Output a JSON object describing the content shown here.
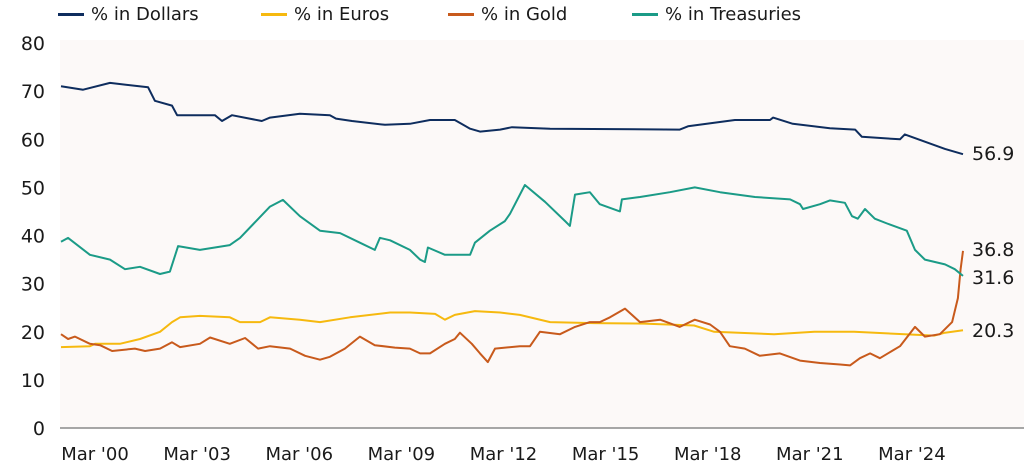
{
  "chart_data": {
    "type": "line",
    "title": "",
    "xlabel": "",
    "ylabel": "",
    "ylim": [
      0,
      80
    ],
    "yticks": [
      0,
      10,
      20,
      30,
      40,
      50,
      60,
      70,
      80
    ],
    "xlim": [
      1999.25,
      2025.75
    ],
    "xticks": [
      {
        "x": 2000.25,
        "label": "Mar '00"
      },
      {
        "x": 2003.25,
        "label": "Mar '03"
      },
      {
        "x": 2006.25,
        "label": "Mar '06"
      },
      {
        "x": 2009.25,
        "label": "Mar '09"
      },
      {
        "x": 2012.25,
        "label": "Mar '12"
      },
      {
        "x": 2015.25,
        "label": "Mar '15"
      },
      {
        "x": 2018.25,
        "label": "Mar '18"
      },
      {
        "x": 2021.25,
        "label": "Mar '21"
      },
      {
        "x": 2024.25,
        "label": "Mar '24"
      }
    ],
    "grid": false,
    "legend_placement": "top",
    "background": "#fcf9f8",
    "series": [
      {
        "name": "% in Dollars",
        "color": "#0e2d5e",
        "end_label": "56.9",
        "points": [
          [
            1999.25,
            71
          ],
          [
            1999.9,
            70.3
          ],
          [
            2000.69,
            71.7
          ],
          [
            2001.81,
            70.8
          ],
          [
            2002.01,
            68
          ],
          [
            2002.51,
            67
          ],
          [
            2002.66,
            65
          ],
          [
            2003.77,
            65
          ],
          [
            2003.98,
            63.8
          ],
          [
            2004.27,
            65
          ],
          [
            2005.15,
            63.8
          ],
          [
            2005.39,
            64.5
          ],
          [
            2006.27,
            65.3
          ],
          [
            2007.15,
            65
          ],
          [
            2007.33,
            64.3
          ],
          [
            2007.8,
            63.8
          ],
          [
            2008.77,
            63
          ],
          [
            2009.5,
            63.2
          ],
          [
            2010.09,
            64
          ],
          [
            2010.82,
            64
          ],
          [
            2011.27,
            62.2
          ],
          [
            2011.56,
            61.6
          ],
          [
            2012.15,
            62
          ],
          [
            2012.5,
            62.5
          ],
          [
            2013.62,
            62.2
          ],
          [
            2017.43,
            62
          ],
          [
            2017.67,
            62.7
          ],
          [
            2019.05,
            64
          ],
          [
            2020.08,
            64
          ],
          [
            2020.17,
            64.5
          ],
          [
            2020.75,
            63.2
          ],
          [
            2021.84,
            62.3
          ],
          [
            2022.58,
            62
          ],
          [
            2022.78,
            60.5
          ],
          [
            2023.9,
            60
          ],
          [
            2024.04,
            61
          ],
          [
            2024.63,
            59.5
          ],
          [
            2025.22,
            58
          ],
          [
            2025.75,
            56.9
          ]
        ]
      },
      {
        "name": "% in Euros",
        "color": "#f6b90f",
        "end_label": "20.3",
        "points": [
          [
            1999.25,
            16.8
          ],
          [
            2000.1,
            17
          ],
          [
            2000.25,
            17.5
          ],
          [
            2000.98,
            17.5
          ],
          [
            2001.57,
            18.5
          ],
          [
            2002.16,
            20
          ],
          [
            2002.51,
            22
          ],
          [
            2002.75,
            23
          ],
          [
            2003.33,
            23.3
          ],
          [
            2004.21,
            23
          ],
          [
            2004.51,
            22
          ],
          [
            2005.1,
            22
          ],
          [
            2005.39,
            23
          ],
          [
            2006.27,
            22.5
          ],
          [
            2006.86,
            22
          ],
          [
            2007.74,
            23
          ],
          [
            2008.92,
            24
          ],
          [
            2009.5,
            24
          ],
          [
            2010.24,
            23.7
          ],
          [
            2010.53,
            22.5
          ],
          [
            2010.82,
            23.5
          ],
          [
            2011.41,
            24.3
          ],
          [
            2012.15,
            24
          ],
          [
            2012.73,
            23.5
          ],
          [
            2013.62,
            22
          ],
          [
            2014.91,
            21.8
          ],
          [
            2016.38,
            21.7
          ],
          [
            2017.85,
            21.3
          ],
          [
            2018.44,
            20
          ],
          [
            2020.2,
            19.5
          ],
          [
            2021.38,
            20
          ],
          [
            2022.55,
            20
          ],
          [
            2023.73,
            19.6
          ],
          [
            2024.9,
            19.2
          ],
          [
            2025.22,
            19.8
          ],
          [
            2025.75,
            20.3
          ]
        ]
      },
      {
        "name": "% in Gold",
        "color": "#c85a1c",
        "end_label": "36.8",
        "points": [
          [
            1999.25,
            19.5
          ],
          [
            1999.46,
            18.5
          ],
          [
            1999.66,
            19
          ],
          [
            2000.1,
            17.5
          ],
          [
            2000.4,
            17.2
          ],
          [
            2000.75,
            16
          ],
          [
            2001.42,
            16.5
          ],
          [
            2001.72,
            16
          ],
          [
            2002.16,
            16.5
          ],
          [
            2002.51,
            17.8
          ],
          [
            2002.75,
            16.8
          ],
          [
            2003.33,
            17.5
          ],
          [
            2003.63,
            18.8
          ],
          [
            2004.21,
            17.5
          ],
          [
            2004.66,
            18.7
          ],
          [
            2005.04,
            16.5
          ],
          [
            2005.39,
            17
          ],
          [
            2005.98,
            16.5
          ],
          [
            2006.42,
            15
          ],
          [
            2006.86,
            14.2
          ],
          [
            2007.15,
            14.8
          ],
          [
            2007.59,
            16.5
          ],
          [
            2008.03,
            19
          ],
          [
            2008.47,
            17.2
          ],
          [
            2009.06,
            16.7
          ],
          [
            2009.5,
            16.5
          ],
          [
            2009.8,
            15.5
          ],
          [
            2010.09,
            15.5
          ],
          [
            2010.53,
            17.5
          ],
          [
            2010.82,
            18.5
          ],
          [
            2010.97,
            19.8
          ],
          [
            2011.32,
            17.5
          ],
          [
            2011.56,
            15.5
          ],
          [
            2011.79,
            13.7
          ],
          [
            2012.0,
            16.5
          ],
          [
            2012.73,
            17
          ],
          [
            2013.03,
            17
          ],
          [
            2013.32,
            20
          ],
          [
            2013.91,
            19.5
          ],
          [
            2014.35,
            21
          ],
          [
            2014.79,
            22
          ],
          [
            2015.08,
            22
          ],
          [
            2015.38,
            23
          ],
          [
            2015.82,
            24.8
          ],
          [
            2016.26,
            22
          ],
          [
            2016.85,
            22.5
          ],
          [
            2017.43,
            21
          ],
          [
            2017.87,
            22.5
          ],
          [
            2018.32,
            21.5
          ],
          [
            2018.61,
            20
          ],
          [
            2018.9,
            17
          ],
          [
            2019.34,
            16.5
          ],
          [
            2019.78,
            15
          ],
          [
            2020.37,
            15.5
          ],
          [
            2020.96,
            14
          ],
          [
            2021.55,
            13.5
          ],
          [
            2022.14,
            13.2
          ],
          [
            2022.43,
            13
          ],
          [
            2022.72,
            14.5
          ],
          [
            2023.02,
            15.5
          ],
          [
            2023.31,
            14.5
          ],
          [
            2023.66,
            16
          ],
          [
            2023.9,
            17
          ],
          [
            2024.34,
            21
          ],
          [
            2024.63,
            19
          ],
          [
            2025.07,
            19.5
          ],
          [
            2025.43,
            22
          ],
          [
            2025.6,
            27
          ],
          [
            2025.68,
            33
          ],
          [
            2025.75,
            36.8
          ]
        ]
      },
      {
        "name": "% in Treasuries",
        "color": "#1b9b87",
        "end_label": "31.6",
        "points": [
          [
            1999.25,
            38.7
          ],
          [
            1999.46,
            39.5
          ],
          [
            2000.1,
            36
          ],
          [
            2000.69,
            35
          ],
          [
            2001.13,
            33
          ],
          [
            2001.57,
            33.5
          ],
          [
            2002.16,
            32
          ],
          [
            2002.45,
            32.5
          ],
          [
            2002.69,
            37.8
          ],
          [
            2003.33,
            37
          ],
          [
            2004.21,
            38
          ],
          [
            2004.51,
            39.5
          ],
          [
            2005.39,
            46
          ],
          [
            2005.77,
            47.4
          ],
          [
            2006.27,
            44
          ],
          [
            2006.86,
            41
          ],
          [
            2007.45,
            40.5
          ],
          [
            2008.03,
            38.5
          ],
          [
            2008.47,
            37
          ],
          [
            2008.62,
            39.5
          ],
          [
            2008.92,
            39
          ],
          [
            2009.5,
            37
          ],
          [
            2009.8,
            35
          ],
          [
            2009.94,
            34.5
          ],
          [
            2010.03,
            37.5
          ],
          [
            2010.53,
            36
          ],
          [
            2011.27,
            36
          ],
          [
            2011.41,
            38.5
          ],
          [
            2011.85,
            41
          ],
          [
            2012.29,
            43
          ],
          [
            2012.44,
            44.5
          ],
          [
            2012.88,
            50.5
          ],
          [
            2013.47,
            47
          ],
          [
            2014.06,
            43
          ],
          [
            2014.2,
            42
          ],
          [
            2014.35,
            48.5
          ],
          [
            2014.79,
            49
          ],
          [
            2015.08,
            46.5
          ],
          [
            2015.67,
            45
          ],
          [
            2015.73,
            47.5
          ],
          [
            2016.26,
            48
          ],
          [
            2017.14,
            49
          ],
          [
            2017.87,
            50
          ],
          [
            2018.61,
            49
          ],
          [
            2019.64,
            48
          ],
          [
            2020.67,
            47.5
          ],
          [
            2020.96,
            46.5
          ],
          [
            2021.05,
            45.5
          ],
          [
            2021.55,
            46.5
          ],
          [
            2021.84,
            47.3
          ],
          [
            2022.28,
            46.8
          ],
          [
            2022.49,
            44
          ],
          [
            2022.66,
            43.5
          ],
          [
            2022.87,
            45.5
          ],
          [
            2023.16,
            43.5
          ],
          [
            2023.52,
            42.5
          ],
          [
            2024.1,
            41
          ],
          [
            2024.34,
            37
          ],
          [
            2024.63,
            35
          ],
          [
            2025.22,
            34
          ],
          [
            2025.51,
            33
          ],
          [
            2025.75,
            31.6
          ]
        ]
      }
    ]
  }
}
